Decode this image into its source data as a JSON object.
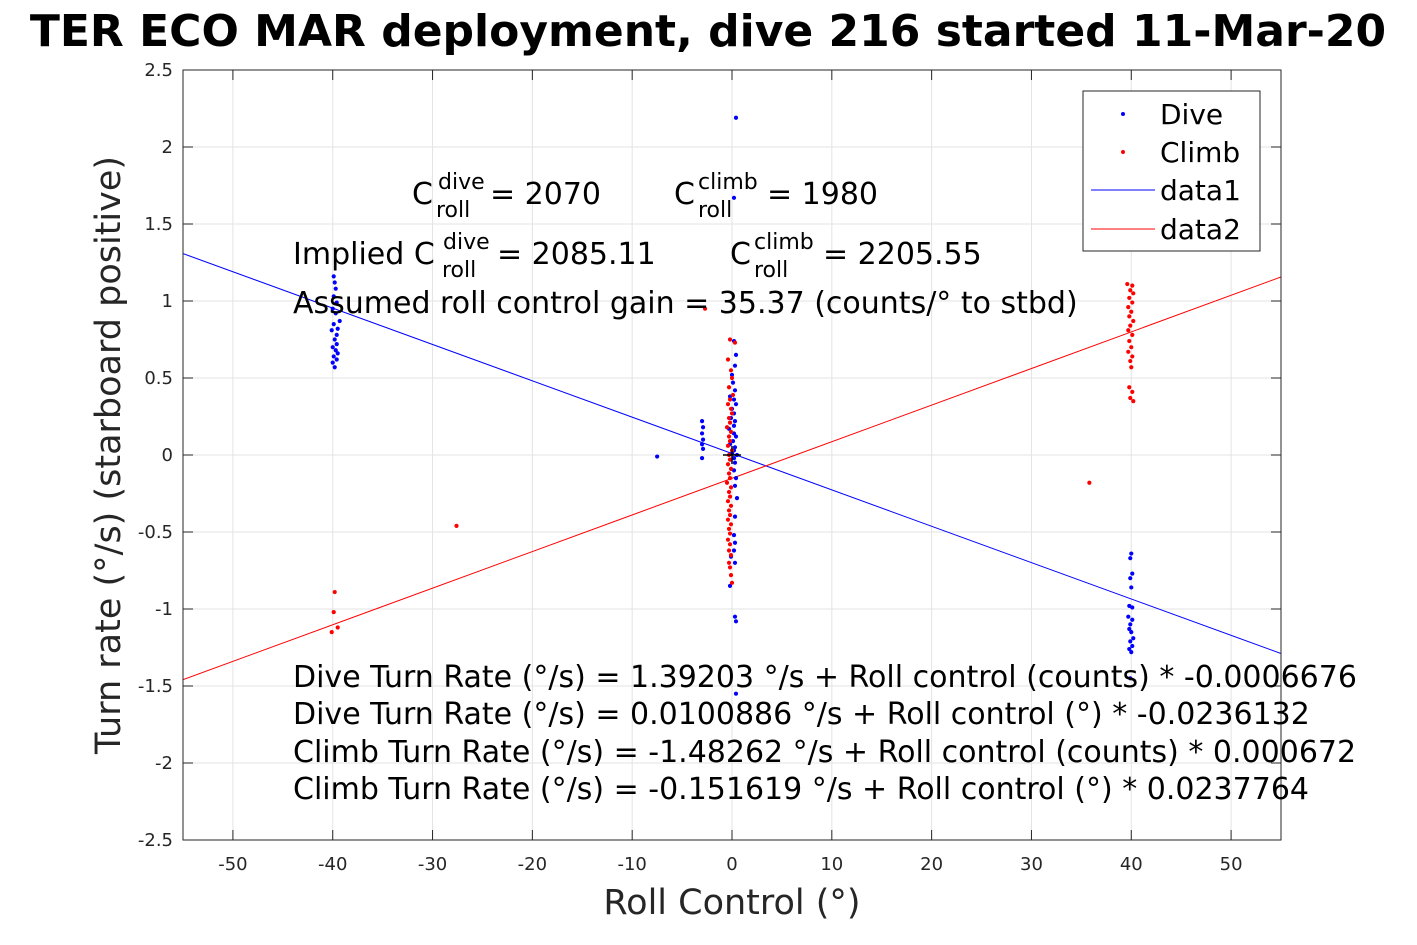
{
  "chart_data": {
    "type": "scatter",
    "title": "TER ECO MAR deployment, dive 216 started 11-Mar-20",
    "xlabel": "Roll Control (°)",
    "ylabel": "Turn rate (°/s) (starboard positive)",
    "xlim": [
      -55,
      55
    ],
    "ylim": [
      -2.5,
      2.5
    ],
    "grid": true,
    "x_ticks": [
      -50,
      -40,
      -30,
      -20,
      -10,
      0,
      10,
      20,
      30,
      40,
      50
    ],
    "x_tick_labels": [
      "-50",
      "-40",
      "-30",
      "-20",
      "-10",
      "0",
      "10",
      "20",
      "30",
      "40",
      "50"
    ],
    "y_ticks": [
      2.5,
      2,
      1.5,
      1,
      0.5,
      0,
      -0.5,
      -1,
      -1.5,
      -2,
      -2.5
    ],
    "y_tick_labels": [
      "2.5",
      "2",
      "1.5",
      "1",
      "0.5",
      "0",
      "-0.5",
      "-1",
      "-1.5",
      "-2",
      "-2.5"
    ],
    "legend_position": "top-right",
    "legend": [
      "Dive",
      "Climb",
      "data1",
      "data2"
    ],
    "series": [
      {
        "name": "Dive",
        "color": "#0000ff",
        "marker": "point",
        "points": [
          [
            -39.9,
            1.16
          ],
          [
            -39.8,
            1.12
          ],
          [
            -39.7,
            1.08
          ],
          [
            -39.9,
            1.03
          ],
          [
            -39.6,
            0.99
          ],
          [
            -40.0,
            0.95
          ],
          [
            -39.7,
            0.92
          ],
          [
            -39.3,
            0.87
          ],
          [
            -39.9,
            0.85
          ],
          [
            -39.5,
            0.82
          ],
          [
            -40.1,
            0.81
          ],
          [
            -39.6,
            0.78
          ],
          [
            -39.8,
            0.75
          ],
          [
            -39.6,
            0.72
          ],
          [
            -40.0,
            0.7
          ],
          [
            -39.7,
            0.68
          ],
          [
            -39.5,
            0.66
          ],
          [
            -39.9,
            0.64
          ],
          [
            -39.6,
            0.62
          ],
          [
            -40.0,
            0.6
          ],
          [
            -39.8,
            0.57
          ],
          [
            -7.5,
            -0.01
          ],
          [
            -3.0,
            0.22
          ],
          [
            -2.9,
            0.18
          ],
          [
            -3.0,
            0.14
          ],
          [
            -2.9,
            0.1
          ],
          [
            -3.0,
            0.07
          ],
          [
            -2.9,
            0.04
          ],
          [
            -3.0,
            -0.02
          ],
          [
            0.4,
            2.19
          ],
          [
            0.2,
            1.67
          ],
          [
            0.2,
            0.74
          ],
          [
            0.4,
            0.65
          ],
          [
            0.3,
            0.58
          ],
          [
            0.0,
            0.52
          ],
          [
            0.1,
            0.47
          ],
          [
            0.3,
            0.42
          ],
          [
            -0.2,
            0.38
          ],
          [
            0.2,
            0.36
          ],
          [
            0.4,
            0.33
          ],
          [
            0.0,
            0.3
          ],
          [
            0.2,
            0.27
          ],
          [
            -0.1,
            0.24
          ],
          [
            0.3,
            0.22
          ],
          [
            0.2,
            0.19
          ],
          [
            -0.3,
            0.17
          ],
          [
            0.2,
            0.14
          ],
          [
            0.4,
            0.12
          ],
          [
            0.1,
            0.09
          ],
          [
            -0.2,
            0.07
          ],
          [
            0.3,
            0.05
          ],
          [
            0.2,
            0.03
          ],
          [
            0.0,
            0.01
          ],
          [
            0.5,
            0.0
          ],
          [
            0.2,
            -0.02
          ],
          [
            0.3,
            -0.05
          ],
          [
            0.2,
            -0.1
          ],
          [
            0.4,
            -0.15
          ],
          [
            0.3,
            -0.2
          ],
          [
            0.5,
            -0.28
          ],
          [
            0.3,
            -0.4
          ],
          [
            0.2,
            -0.52
          ],
          [
            0.3,
            -0.57
          ],
          [
            0.2,
            -0.62
          ],
          [
            -0.1,
            -0.66
          ],
          [
            0.3,
            -0.7
          ],
          [
            -0.2,
            -0.85
          ],
          [
            0.3,
            -1.05
          ],
          [
            0.4,
            -1.08
          ],
          [
            0.4,
            -1.55
          ],
          [
            40.0,
            -0.64
          ],
          [
            39.9,
            -0.67
          ],
          [
            40.1,
            -0.77
          ],
          [
            39.9,
            -0.8
          ],
          [
            40.0,
            -0.86
          ],
          [
            39.8,
            -0.98
          ],
          [
            40.1,
            -0.99
          ],
          [
            39.7,
            -1.05
          ],
          [
            40.1,
            -1.07
          ],
          [
            39.9,
            -1.1
          ],
          [
            39.8,
            -1.13
          ],
          [
            40.0,
            -1.15
          ],
          [
            40.2,
            -1.19
          ],
          [
            39.9,
            -1.21
          ],
          [
            40.1,
            -1.24
          ],
          [
            39.8,
            -1.26
          ],
          [
            40.0,
            -1.28
          ],
          [
            39.9,
            -1.45
          ]
        ]
      },
      {
        "name": "Climb",
        "color": "#ff0000",
        "marker": "point",
        "points": [
          [
            -39.8,
            -0.89
          ],
          [
            -39.9,
            -1.02
          ],
          [
            -39.5,
            -1.12
          ],
          [
            -40.1,
            -1.15
          ],
          [
            -27.6,
            -0.46
          ],
          [
            -2.7,
            0.95
          ],
          [
            -0.2,
            0.75
          ],
          [
            0.3,
            0.73
          ],
          [
            -0.4,
            0.62
          ],
          [
            -0.1,
            0.55
          ],
          [
            0.0,
            0.5
          ],
          [
            -0.3,
            0.44
          ],
          [
            0.1,
            0.39
          ],
          [
            -0.2,
            0.36
          ],
          [
            -0.4,
            0.33
          ],
          [
            -0.1,
            0.3
          ],
          [
            0.0,
            0.27
          ],
          [
            -0.3,
            0.24
          ],
          [
            -0.2,
            0.21
          ],
          [
            -0.5,
            0.18
          ],
          [
            -0.1,
            0.15
          ],
          [
            -0.3,
            0.12
          ],
          [
            -0.2,
            0.09
          ],
          [
            -0.4,
            0.06
          ],
          [
            0.0,
            0.03
          ],
          [
            -0.3,
            0.0
          ],
          [
            -0.2,
            -0.03
          ],
          [
            -0.4,
            -0.06
          ],
          [
            -0.1,
            -0.09
          ],
          [
            -0.3,
            -0.12
          ],
          [
            -0.2,
            -0.15
          ],
          [
            -0.5,
            -0.18
          ],
          [
            -0.1,
            -0.21
          ],
          [
            -0.3,
            -0.24
          ],
          [
            -0.2,
            -0.27
          ],
          [
            -0.4,
            -0.3
          ],
          [
            -0.1,
            -0.33
          ],
          [
            -0.3,
            -0.36
          ],
          [
            -0.2,
            -0.39
          ],
          [
            -0.4,
            -0.42
          ],
          [
            -0.1,
            -0.45
          ],
          [
            -0.3,
            -0.48
          ],
          [
            -0.2,
            -0.51
          ],
          [
            -0.4,
            -0.55
          ],
          [
            -0.2,
            -0.58
          ],
          [
            -0.3,
            -0.62
          ],
          [
            -0.1,
            -0.65
          ],
          [
            -0.3,
            -0.7
          ],
          [
            -0.2,
            -0.73
          ],
          [
            -0.1,
            -0.78
          ],
          [
            0.0,
            -0.83
          ],
          [
            35.8,
            -0.18
          ],
          [
            39.6,
            1.11
          ],
          [
            40.1,
            1.1
          ],
          [
            39.9,
            1.07
          ],
          [
            40.2,
            1.05
          ],
          [
            39.8,
            1.02
          ],
          [
            40.1,
            0.99
          ],
          [
            39.7,
            0.96
          ],
          [
            40.0,
            0.93
          ],
          [
            39.8,
            0.9
          ],
          [
            40.2,
            0.87
          ],
          [
            39.9,
            0.84
          ],
          [
            39.7,
            0.81
          ],
          [
            40.1,
            0.78
          ],
          [
            39.8,
            0.74
          ],
          [
            40.0,
            0.7
          ],
          [
            39.7,
            0.67
          ],
          [
            40.1,
            0.64
          ],
          [
            39.9,
            0.61
          ],
          [
            40.0,
            0.57
          ],
          [
            39.8,
            0.44
          ],
          [
            40.1,
            0.41
          ],
          [
            39.9,
            0.37
          ],
          [
            40.2,
            0.35
          ]
        ]
      },
      {
        "name": "data1",
        "color": "#0000ff",
        "marker": "line",
        "points": [
          [
            -55,
            1.308
          ],
          [
            55,
            -1.289
          ]
        ]
      },
      {
        "name": "data2",
        "color": "#ff0000",
        "marker": "line",
        "points": [
          [
            -55,
            -1.459
          ],
          [
            55,
            1.156
          ]
        ]
      }
    ],
    "origin_marker": {
      "x": 0,
      "y": 0,
      "color": "#000000"
    },
    "annotations": {
      "c_dive": {
        "pre": "C",
        "sup": "dive",
        "sub": "roll",
        "post": " = 2070"
      },
      "c_climb": {
        "pre": "C",
        "sup": "climb",
        "sub": "roll",
        "post": " = 1980"
      },
      "implied_dive": {
        "pre": "Implied C",
        "sup": "dive",
        "sub": "roll",
        "post": " = 2085.11"
      },
      "implied_climb": {
        "pre": "C",
        "sup": "climb",
        "sub": "roll",
        "post": " = 2205.55"
      },
      "gain": "Assumed roll control gain = 35.37 (counts/° to stbd)",
      "fit_lines": [
        "Dive Turn Rate (°/s) = 1.39203 °/s + Roll control (counts) * -0.0006676",
        "Dive Turn Rate (°/s) = 0.0100886 °/s + Roll control (°) * -0.0236132",
        "Climb Turn Rate (°/s) = -1.48262 °/s + Roll control (counts) * 0.000672",
        "Climb Turn Rate (°/s) = -0.151619 °/s + Roll control (°) * 0.0237764"
      ]
    }
  }
}
